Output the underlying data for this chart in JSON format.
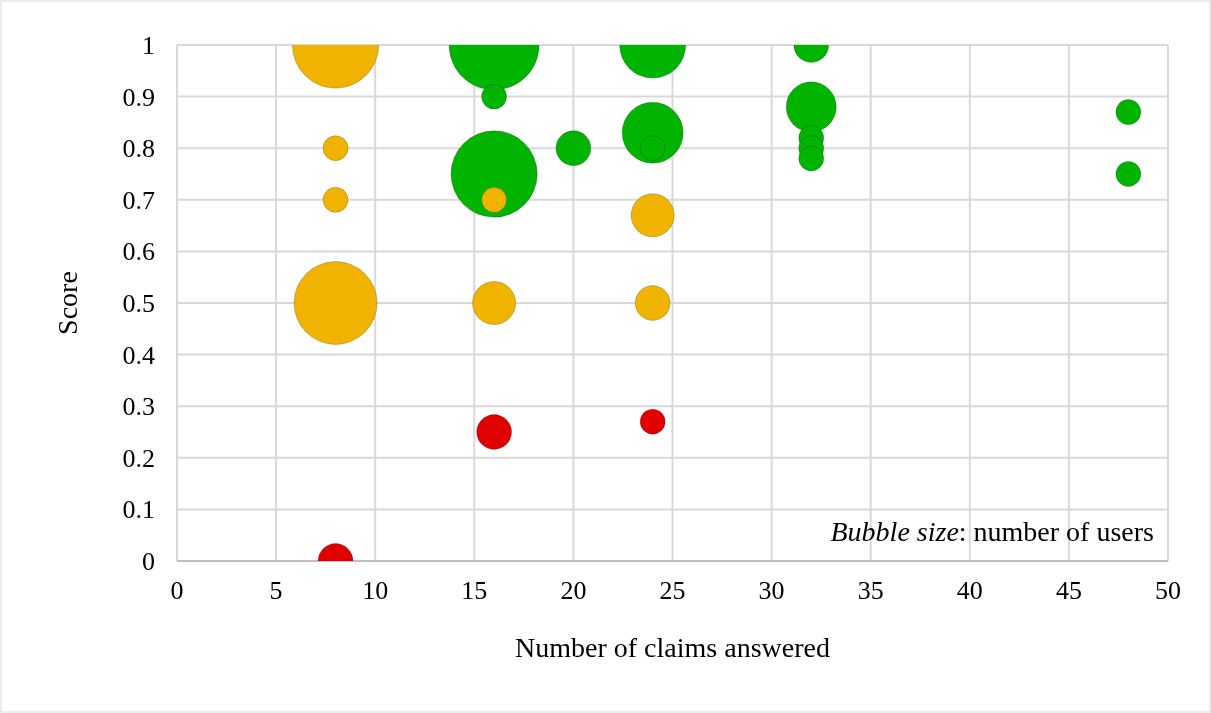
{
  "chart_data": {
    "type": "bubble",
    "xlabel": "Number of claims answered",
    "ylabel": "Score",
    "xlim": [
      0,
      50
    ],
    "xticks": [
      0,
      5,
      10,
      15,
      20,
      25,
      30,
      35,
      40,
      45,
      50
    ],
    "ylim": [
      0,
      1
    ],
    "yticks": [
      0,
      0.1,
      0.2,
      0.3,
      0.4,
      0.5,
      0.6,
      0.7,
      0.8,
      0.9,
      1
    ],
    "grid": true,
    "annotations": [
      "Bubble size: number of users"
    ],
    "series": [
      {
        "color": "#00b400",
        "x": [
          16,
          16,
          16,
          20,
          24,
          24,
          24,
          32,
          32,
          32,
          32,
          32,
          48,
          48
        ],
        "values": [
          1,
          0.9,
          0.75,
          0.8,
          1,
          0.83,
          0.8,
          1,
          0.88,
          0.82,
          0.8,
          0.78,
          0.87,
          0.75
        ],
        "sizes": [
          1,
          0.077,
          0.92,
          0.15,
          0.54,
          0.46,
          0.077,
          0.15,
          0.31,
          0.077,
          0.077,
          0.077,
          0.077,
          0.077
        ]
      },
      {
        "color": "#f0b400",
        "x": [
          8,
          8,
          8,
          8,
          16,
          16,
          24,
          24
        ],
        "values": [
          1,
          0.8,
          0.7,
          0.5,
          0.7,
          0.5,
          0.67,
          0.5
        ],
        "sizes": [
          0.92,
          0.077,
          0.077,
          0.85,
          0.077,
          0.23,
          0.23,
          0.15
        ]
      },
      {
        "color": "#e00000",
        "x": [
          8,
          16,
          24
        ],
        "values": [
          0,
          0.25,
          0.27
        ],
        "sizes": [
          0.15,
          0.15,
          0.077
        ]
      }
    ]
  }
}
